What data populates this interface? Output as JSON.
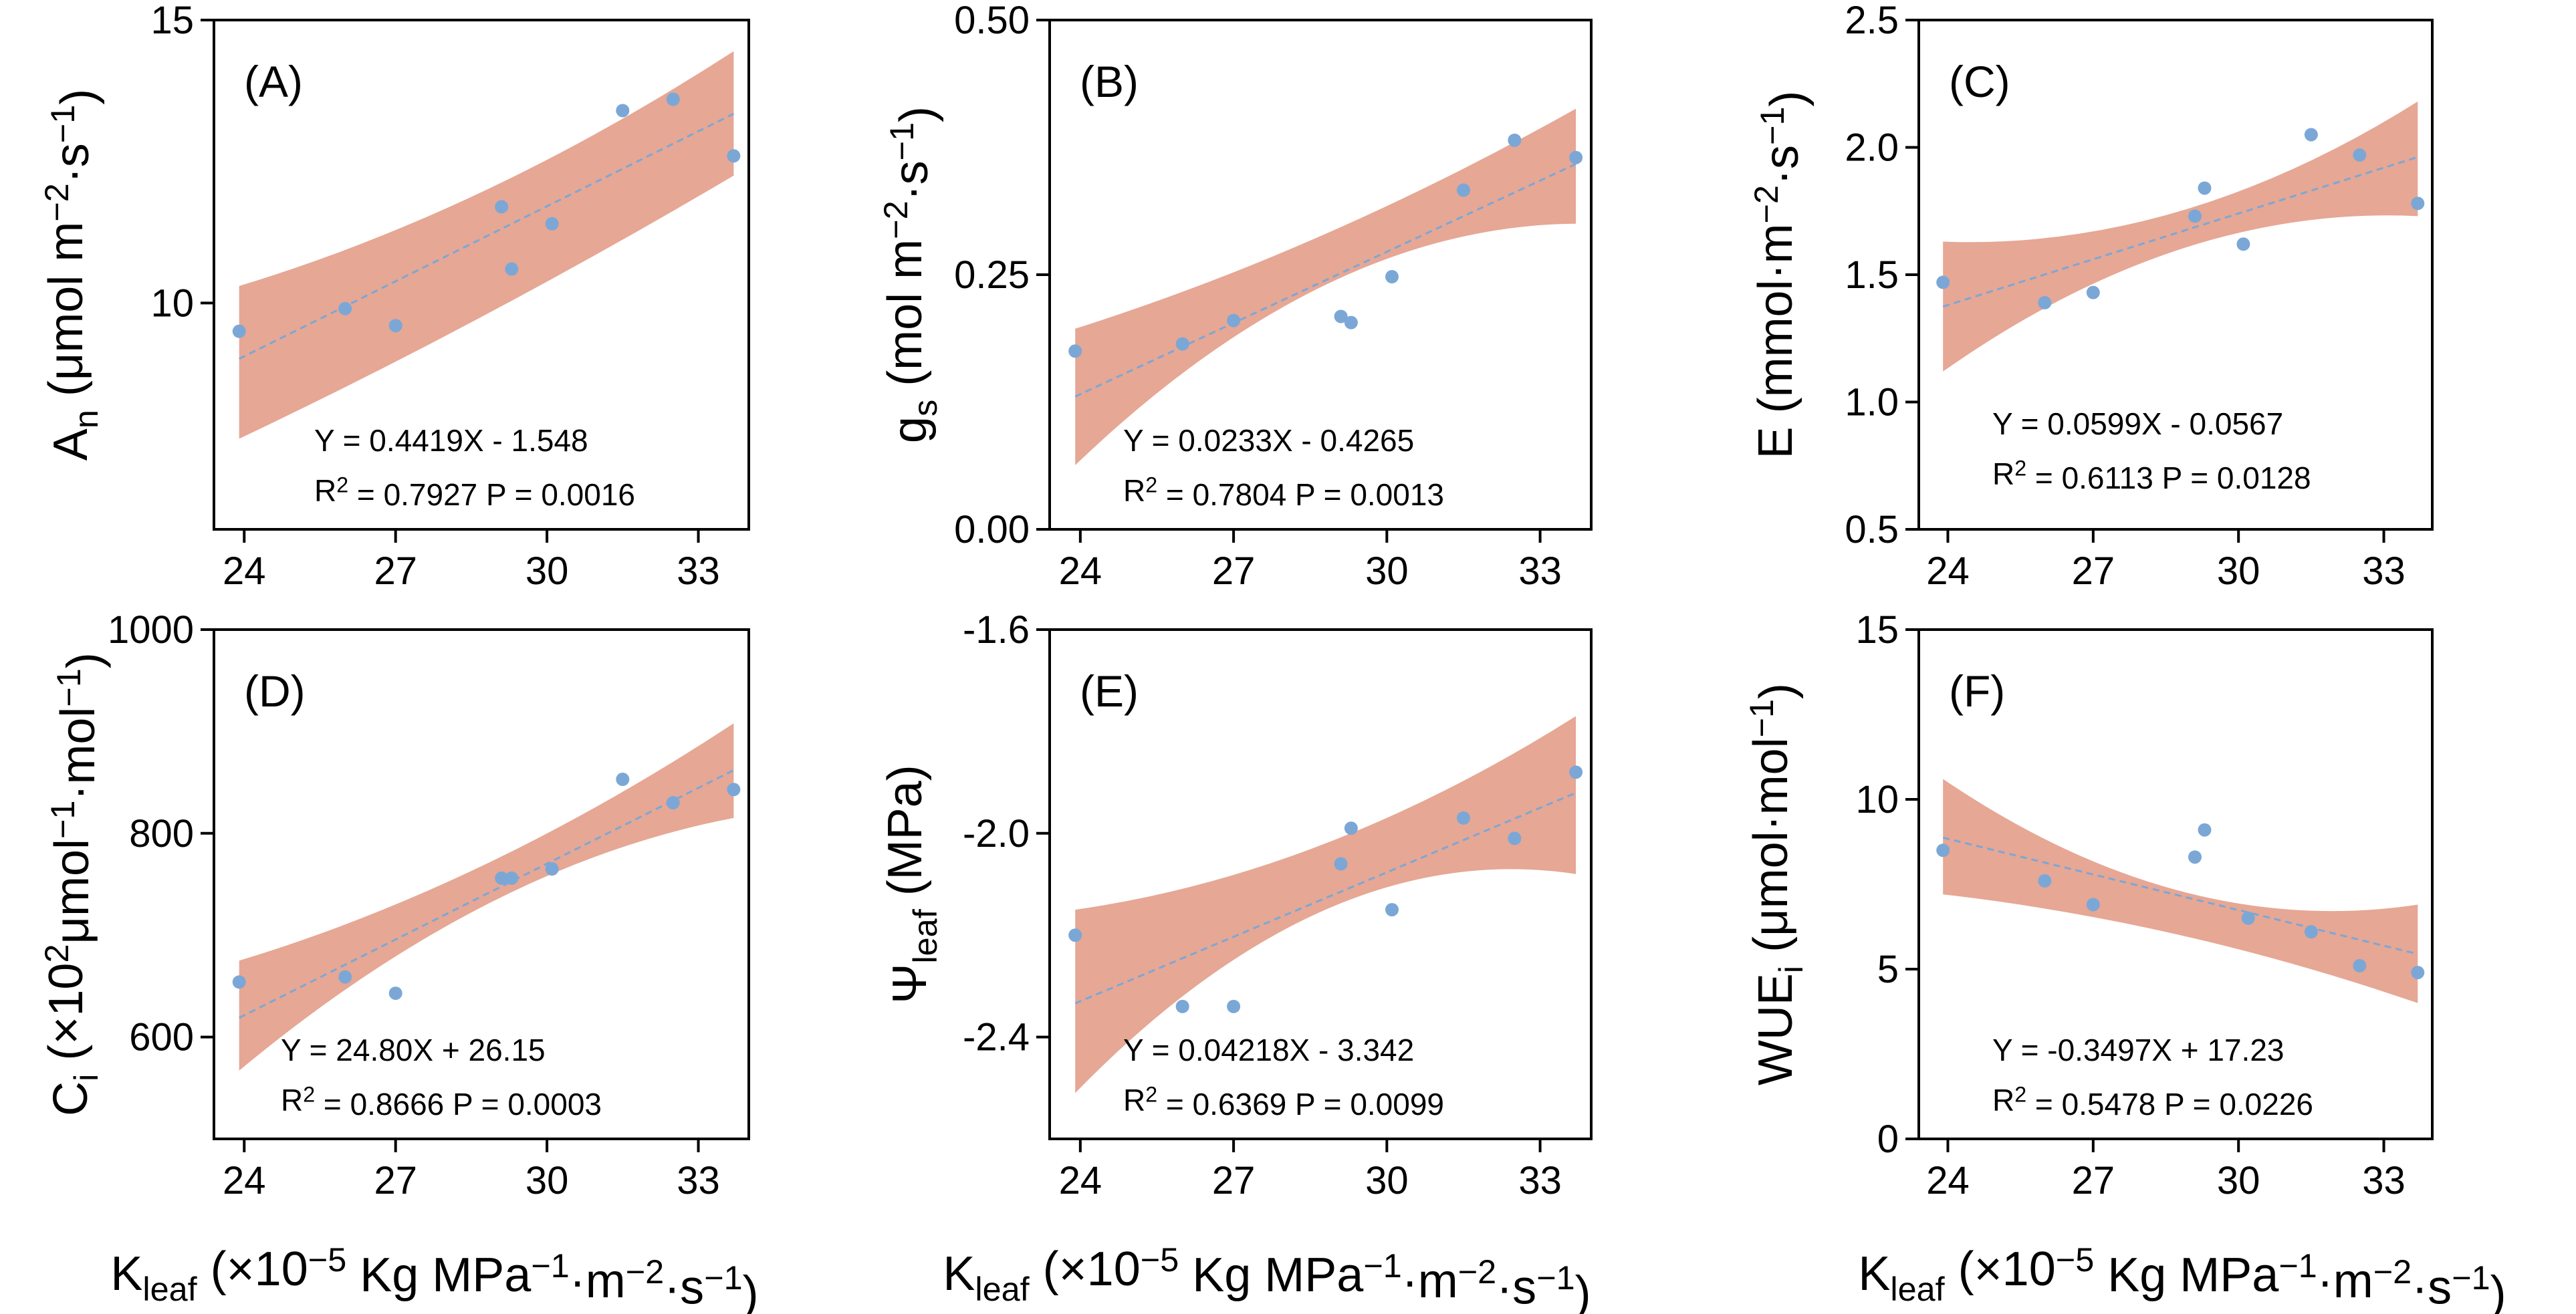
{
  "style": {
    "point_color": "#7ba7d6",
    "band_color": "#e6a795",
    "line_color": "#7ba7d6"
  },
  "chart_data": [
    {
      "id": "A",
      "type": "scatter",
      "panel_label": "(A)",
      "ylabel": "An (μmol m−2·s−1)",
      "ylabel_parts": [
        "A",
        "n",
        " (μmol m",
        "−2",
        "·s",
        "−1",
        ")"
      ],
      "xlabel": "",
      "xlim": [
        23.4,
        34.0
      ],
      "ylim": [
        6.0,
        15.0
      ],
      "xticks": [
        "24",
        "27",
        "30",
        "33"
      ],
      "yticks": [
        "10",
        "15"
      ],
      "x": [
        23.9,
        26.0,
        27.0,
        29.1,
        29.3,
        30.1,
        31.5,
        32.5,
        33.7
      ],
      "y": [
        9.5,
        9.9,
        9.6,
        11.7,
        10.6,
        11.4,
        13.4,
        13.6,
        12.6
      ],
      "fit": {
        "slope": 0.4419,
        "intercept": -1.548
      },
      "band_lower": [
        7.6,
        9.8,
        12.25
      ],
      "band_upper": [
        10.3,
        12.0,
        14.45
      ],
      "equation": "Y = 0.4419X - 1.548",
      "stats": {
        "r2_label": "R",
        "r2_sup": "2",
        "r2_value": " = 0.7927",
        "p_value": "P = 0.0016"
      }
    },
    {
      "id": "B",
      "type": "scatter",
      "panel_label": "(B)",
      "ylabel": "gs (mol m−2·s−1)",
      "ylabel_parts": [
        "g",
        "s",
        " (mol m",
        "−2",
        "·s",
        "−1",
        ")"
      ],
      "xlabel": "",
      "xlim": [
        23.4,
        34.0
      ],
      "ylim": [
        0.0,
        0.5
      ],
      "xticks": [
        "24",
        "27",
        "30",
        "33"
      ],
      "yticks": [
        "0.00",
        "0.25",
        "0.50"
      ],
      "x": [
        23.9,
        26.0,
        27.0,
        29.1,
        29.3,
        30.1,
        31.5,
        32.5,
        33.7
      ],
      "y": [
        0.175,
        0.182,
        0.205,
        0.209,
        0.203,
        0.248,
        0.333,
        0.382,
        0.365
      ],
      "fit": {
        "slope": 0.0233,
        "intercept": -0.4265
      },
      "band_lower": [
        0.063,
        0.24,
        0.3
      ],
      "band_upper": [
        0.197,
        0.29,
        0.413
      ],
      "equation": "Y = 0.0233X - 0.4265",
      "stats": {
        "r2_label": "R",
        "r2_sup": "2",
        "r2_value": " = 0.7804",
        "p_value": "P = 0.0013"
      }
    },
    {
      "id": "C",
      "type": "scatter",
      "panel_label": "(C)",
      "ylabel": "E (mmol·m−2·s−1)",
      "ylabel_parts": [
        "E",
        "",
        " (mmol·m",
        "−2",
        "·s",
        "−1",
        ")"
      ],
      "xlabel": "",
      "xlim": [
        23.4,
        34.0
      ],
      "ylim": [
        0.5,
        2.5
      ],
      "xticks": [
        "24",
        "27",
        "30",
        "33"
      ],
      "yticks": [
        "0.5",
        "1.0",
        "1.5",
        "2.0",
        "2.5"
      ],
      "x": [
        23.9,
        26.0,
        27.0,
        29.1,
        29.3,
        30.1,
        31.5,
        32.5,
        33.7
      ],
      "y": [
        1.47,
        1.39,
        1.43,
        1.73,
        1.84,
        1.62,
        2.05,
        1.97,
        1.78
      ],
      "fit": {
        "slope": 0.0599,
        "intercept": -0.0567
      },
      "band_lower": [
        1.12,
        1.6,
        1.73
      ],
      "band_upper": [
        1.63,
        1.75,
        2.18
      ],
      "equation": "Y = 0.0599X - 0.0567",
      "stats": {
        "r2_label": "R",
        "r2_sup": "2",
        "r2_value": " = 0.6113",
        "p_value": "P = 0.0128"
      }
    },
    {
      "id": "D",
      "type": "scatter",
      "panel_label": "(D)",
      "ylabel": "Ci (×102μmol−1·mol−1)",
      "ylabel_parts": [
        "C",
        "i",
        " (×10",
        "2",
        "μmol",
        "−1",
        "·mol",
        "−1",
        ")"
      ],
      "xlabel": "Kleaf (×10−5 Kg MPa−1·m−2·s−1)",
      "xlim": [
        23.4,
        34.0
      ],
      "ylim": [
        500,
        1000
      ],
      "xticks": [
        "24",
        "27",
        "30",
        "33"
      ],
      "yticks": [
        "600",
        "800",
        "1000"
      ],
      "x": [
        23.9,
        26.0,
        27.0,
        29.1,
        29.3,
        30.1,
        31.5,
        32.5,
        33.7
      ],
      "y": [
        654,
        659,
        643,
        756,
        756,
        765,
        853,
        830,
        843
      ],
      "fit": {
        "slope": 24.8,
        "intercept": 26.15
      },
      "band_lower": [
        567,
        730,
        815
      ],
      "band_upper": [
        675,
        770,
        908
      ],
      "equation": "Y = 24.80X + 26.15",
      "stats": {
        "r2_label": "R",
        "r2_sup": "2",
        "r2_value": " = 0.8666",
        "p_value": "P = 0.0003"
      }
    },
    {
      "id": "E",
      "type": "scatter",
      "panel_label": "(E)",
      "ylabel": "Ψleaf (MPa)",
      "ylabel_parts": [
        "Ψ",
        "leaf",
        " (MPa)",
        "",
        "",
        "",
        ""
      ],
      "xlabel": "Kleaf (×10−5 Kg MPa−1·m−2·s−1)",
      "xlim": [
        23.4,
        34.0
      ],
      "ylim": [
        -2.6,
        -1.6
      ],
      "xticks": [
        "24",
        "27",
        "30",
        "33"
      ],
      "yticks": [
        "-2.4",
        "-2.0",
        "-1.6"
      ],
      "x": [
        23.9,
        26.0,
        27.0,
        29.1,
        29.3,
        30.1,
        31.5,
        32.5,
        33.7
      ],
      "y": [
        -2.2,
        -2.34,
        -2.34,
        -2.06,
        -1.99,
        -2.15,
        -1.97,
        -2.01,
        -1.88
      ],
      "fit": {
        "slope": 0.04218,
        "intercept": -3.342
      },
      "band_lower": [
        -2.51,
        -2.15,
        -2.08
      ],
      "band_upper": [
        -2.15,
        -2.02,
        -1.77
      ],
      "equation": "Y = 0.04218X - 3.342",
      "stats": {
        "r2_label": "R",
        "r2_sup": "2",
        "r2_value": " = 0.6369",
        "p_value": "P = 0.0099"
      }
    },
    {
      "id": "F",
      "type": "scatter",
      "panel_label": "(F)",
      "ylabel": "WUEi (μmol·mol−1)",
      "ylabel_parts": [
        "WUE",
        "i",
        " (μmol·mol",
        "−1",
        ")",
        "",
        ""
      ],
      "xlabel": "Kleaf (×10−5 Kg MPa−1·m−2·s−1)",
      "xlim": [
        23.4,
        34.0
      ],
      "ylim": [
        0,
        15
      ],
      "xticks": [
        "24",
        "27",
        "30",
        "33"
      ],
      "yticks": [
        "0",
        "5",
        "10",
        "15"
      ],
      "x": [
        23.9,
        26.0,
        27.0,
        29.1,
        29.3,
        30.2,
        31.5,
        32.5,
        33.7
      ],
      "y": [
        8.5,
        7.6,
        6.9,
        8.3,
        9.1,
        6.5,
        6.1,
        5.1,
        4.9
      ],
      "fit": {
        "slope": -0.3497,
        "intercept": 17.23
      },
      "band_lower": [
        7.2,
        6.0,
        4.0
      ],
      "band_upper": [
        10.6,
        7.3,
        6.9
      ],
      "equation": "Y = -0.3497X + 17.23",
      "stats": {
        "r2_label": "R",
        "r2_sup": "2",
        "r2_value": " = 0.5478",
        "p_value": "P = 0.0226"
      }
    }
  ],
  "xlabel_parts": [
    "K",
    "leaf",
    " (×10",
    "−5",
    " Kg MPa",
    "−1",
    "·m",
    "−2",
    "·s",
    "−1",
    ")"
  ]
}
